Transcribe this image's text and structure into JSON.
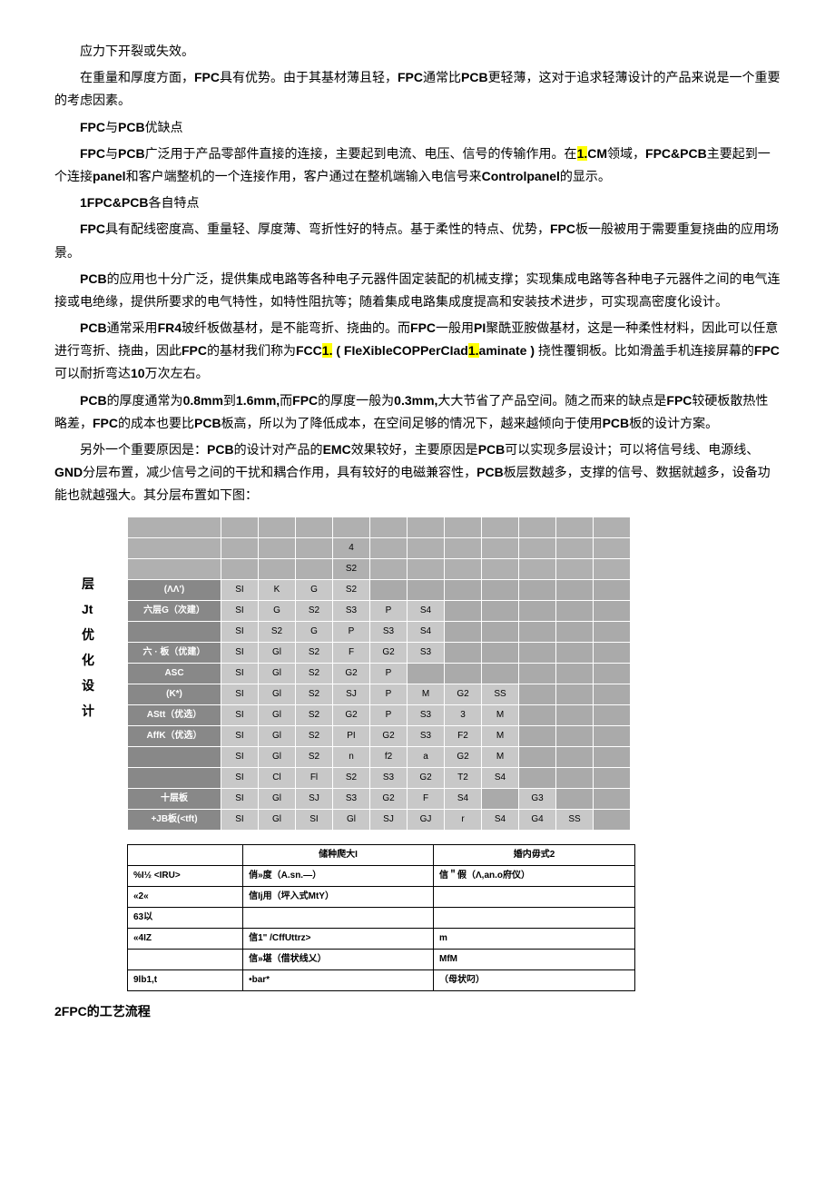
{
  "paragraphs": {
    "p1": "应力下开裂或失效。",
    "p2a": "在重量和厚度方面，",
    "p2b": "FPC",
    "p2c": "具有优势。由于其基材薄且轻，",
    "p2d": "FPC",
    "p2e": "通常比",
    "p2f": "PCB",
    "p2g": "更轻薄，这对于追求轻薄设计的产品来说是一个重要的考虑因素。",
    "p3a": "FPC",
    "p3b": "与",
    "p3c": "PCB",
    "p3d": "优缺点",
    "p4a": "FPC",
    "p4b": "与",
    "p4c": "PCB",
    "p4d": "广泛用于产品零部件直接的连接，主要起到电流、电压、信号的传输作用。在",
    "p4e": "1.",
    "p4f": "CM",
    "p4g": "领域，",
    "p4h": "FPC&PCB",
    "p4i": "主要起到一个连接",
    "p4j": "panel",
    "p4k": "和客户端整机的一个连接作用，客户通过在整机端输入电信号来",
    "p4l": "Controlpanel",
    "p4m": "的显示。",
    "p5a": "1FPC&PCB",
    "p5b": "各自特点",
    "p6a": "FPC",
    "p6b": "具有配线密度高、重量轻、厚度薄、弯折性好的特点。基于柔性的特点、优势，",
    "p6c": "FPC",
    "p6d": "板一般被用于需要重复挠曲的应用场景。",
    "p7a": "PCB",
    "p7b": "的应用也十分广泛，提供集成电路等各种电子元器件固定装配的机械支撑；实现集成电路等各种电子元器件之间的电气连接或电绝缘，提供所要求的电气特性，如特性阻抗等；随着集成电路集成度提高和安装技术进步，可实现高密度化设计。",
    "p8a": "PCB",
    "p8b": "通常采用",
    "p8c": "FR4",
    "p8d": "玻纤板做基材，是不能弯折、挠曲的。而",
    "p8e": "FPC",
    "p8f": "一般用",
    "p8g": "PI",
    "p8h": "聚酰亚胺做基材，这是一种柔性材料，因此可以任意进行弯折、挠曲，因此",
    "p8i": "FPC",
    "p8j": "的基材我们称为",
    "p8k": "FCC",
    "p8l": "1.",
    "p8m": " ( ",
    "p8n": "FIeXibleCOPPerCIad",
    "p8o": "1.",
    "p8p": "aminate )",
    "p8q": " 挠性覆铜板。比如滑盖手机连接屏幕的",
    "p8r": "FPC",
    "p8s": "可以耐折弯达",
    "p8t": "10",
    "p8u": "万次左右。",
    "p9a": "PCB",
    "p9b": "的厚度通常为",
    "p9c": "0.8mm",
    "p9d": "到",
    "p9e": "1.6mm,",
    "p9f": "而",
    "p9g": "FPC",
    "p9h": "的厚度一般为",
    "p9i": "0.3mm,",
    "p9j": "大大节省了产品空间。随之而来的缺点是",
    "p9k": "FPC",
    "p9l": "较硬板散热性略差，",
    "p9m": "FPC",
    "p9n": "的成本也要比",
    "p9o": "PCB",
    "p9p": "板高，所以为了降低成本，在空间足够的情况下，越来越倾向于使用",
    "p9q": "PCB",
    "p9r": "板的设计方案。",
    "p10a": "另外一个重要原因是：",
    "p10b": "PCB",
    "p10c": "的设计对产品的",
    "p10d": "EMC",
    "p10e": "效果较好，主要原因是",
    "p10f": "PCB",
    "p10g": "可以实现多层设计；可以将信号线、电源线、",
    "p10h": "GND",
    "p10i": "分层布置，减少信号之间的干扰和耦合作用，具有较好的电磁兼容性，",
    "p10j": "PCB",
    "p10k": "板层数越多，支撑的信号、数据就越多，设备功能也就越强大。其分层布置如下图：",
    "h2": "2FPC",
    "h2b": "的工艺流程"
  },
  "side_labels": [
    "层",
    "Jt",
    "",
    "优",
    "化",
    "",
    "设",
    "计"
  ],
  "table1": {
    "header_top": [
      "",
      "",
      "",
      "",
      "",
      "",
      "",
      "",
      "",
      "",
      "",
      ""
    ],
    "header2": [
      "",
      "",
      "",
      "",
      "4",
      "",
      "",
      "",
      "",
      "",
      "",
      ""
    ],
    "header3": [
      "",
      "",
      "",
      "",
      "S2",
      "",
      "",
      "",
      "",
      "",
      "",
      ""
    ],
    "rows": [
      {
        "label": "(ΛΛ')",
        "cells": [
          "SI",
          "K",
          "G",
          "S2",
          "",
          "",
          "",
          "",
          "",
          "",
          ""
        ]
      },
      {
        "label": "六层G（次建）",
        "cells": [
          "SI",
          "G",
          "S2",
          "S3",
          "P",
          "S4",
          "",
          "",
          "",
          "",
          ""
        ]
      },
      {
        "label": "",
        "cells": [
          "SI",
          "S2",
          "G",
          "P",
          "S3",
          "S4",
          "",
          "",
          "",
          "",
          ""
        ]
      },
      {
        "label": "六 · 板（优建）",
        "cells": [
          "SI",
          "Gl",
          "S2",
          "F",
          "G2",
          "S3",
          "",
          "",
          "",
          "",
          ""
        ]
      },
      {
        "label": "ASC",
        "cells": [
          "SI",
          "Gl",
          "S2",
          "G2",
          "P",
          "",
          "",
          "",
          "",
          "",
          ""
        ]
      },
      {
        "label": "(K*)",
        "cells": [
          "SI",
          "Gl",
          "S2",
          "SJ",
          "P",
          "M",
          "G2",
          "SS",
          "",
          "",
          ""
        ]
      },
      {
        "label": "AStt（优选）",
        "cells": [
          "SI",
          "Gl",
          "S2",
          "G2",
          "P",
          "S3",
          "3",
          "M",
          "",
          "",
          ""
        ]
      },
      {
        "label": "AffK（优选）",
        "cells": [
          "SI",
          "Gl",
          "S2",
          "PI",
          "G2",
          "S3",
          "F2",
          "M",
          "",
          "",
          ""
        ]
      },
      {
        "label": "",
        "cells": [
          "SI",
          "Gl",
          "S2",
          "n",
          "f2",
          "a",
          "G2",
          "M",
          "",
          "",
          ""
        ]
      },
      {
        "label": "",
        "cells": [
          "SI",
          "Cl",
          "Fl",
          "S2",
          "S3",
          "G2",
          "T2",
          "S4",
          "",
          "",
          ""
        ]
      },
      {
        "label": "十层板",
        "cells": [
          "SI",
          "Gl",
          "SJ",
          "S3",
          "G2",
          "F",
          "S4",
          "",
          "G3",
          "",
          ""
        ]
      },
      {
        "label": "+JB板(<tft)",
        "cells": [
          "SI",
          "Gl",
          "SI",
          "Gl",
          "SJ",
          "GJ",
          "r",
          "S4",
          "G4",
          "SS",
          ""
        ]
      }
    ]
  },
  "table2": {
    "headers": [
      "",
      "储种爬大I",
      "婚内毋式2"
    ],
    "rows": [
      [
        "%I½ <IRU>",
        "俏»度（A.sn.—）",
        "信＂假（Λ,an.o府仪）"
      ],
      [
        "«2«",
        "信Ij用（坪入式MtY）",
        ""
      ],
      [
        "63以",
        "",
        ""
      ],
      [
        "«4IZ",
        "信1\" /CffUttrz>",
        "m"
      ],
      [
        "",
        "信»堪（借状线乂）",
        "MfM"
      ],
      [
        "9lb1,t",
        "•bar*",
        "（母状叼）"
      ]
    ]
  }
}
